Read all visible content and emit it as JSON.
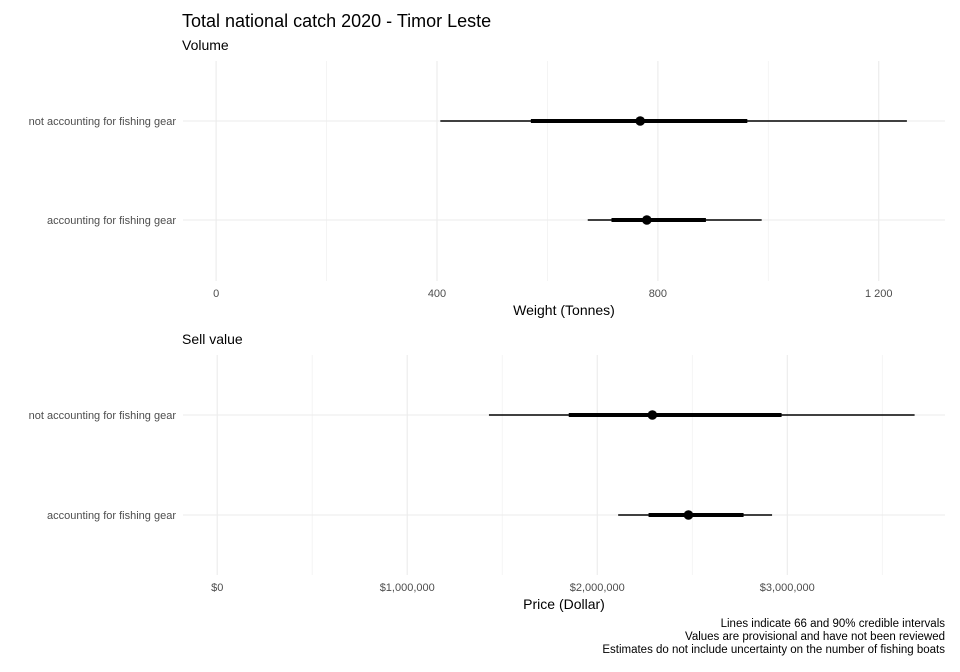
{
  "title": "Total national catch 2020 - Timor Leste",
  "caption": [
    "Lines indicate 66 and 90% credible intervals",
    "Values are provisional and have not been reviewed",
    "Estimates do not include uncertainty on the number of fishing boats"
  ],
  "chart_data": [
    {
      "type": "pointrange",
      "subtitle": "Volume",
      "xlabel": "Weight (Tonnes)",
      "xlim": [
        -60,
        1320
      ],
      "xticks": [
        0,
        400,
        800,
        1200
      ],
      "xtick_labels": [
        "0",
        "400",
        "800",
        "1 200"
      ],
      "categories": [
        "not accounting for fishing gear",
        "accounting for fishing gear"
      ],
      "points": [
        {
          "category": "not accounting for fishing gear",
          "median": 768,
          "ci66": [
            570,
            962
          ],
          "ci90": [
            406,
            1251
          ]
        },
        {
          "category": "accounting for fishing gear",
          "median": 780,
          "ci66": [
            716,
            887
          ],
          "ci90": [
            673,
            988
          ]
        }
      ],
      "grid": true
    },
    {
      "type": "pointrange",
      "subtitle": "Sell value",
      "xlabel": "Price (Dollar)",
      "xlim": [
        -180000,
        3830000
      ],
      "xticks": [
        0,
        1000000,
        2000000,
        3000000
      ],
      "xtick_labels": [
        "$0",
        "$1,000,000",
        "$2,000,000",
        "$3,000,000"
      ],
      "categories": [
        "not accounting for fishing gear",
        "accounting for fishing gear"
      ],
      "points": [
        {
          "category": "not accounting for fishing gear",
          "median": 2290000,
          "ci66": [
            1850000,
            2970000
          ],
          "ci90": [
            1430000,
            3670000
          ]
        },
        {
          "category": "accounting for fishing gear",
          "median": 2480000,
          "ci66": [
            2270000,
            2770000
          ],
          "ci90": [
            2110000,
            2920000
          ]
        }
      ],
      "grid": true
    }
  ]
}
